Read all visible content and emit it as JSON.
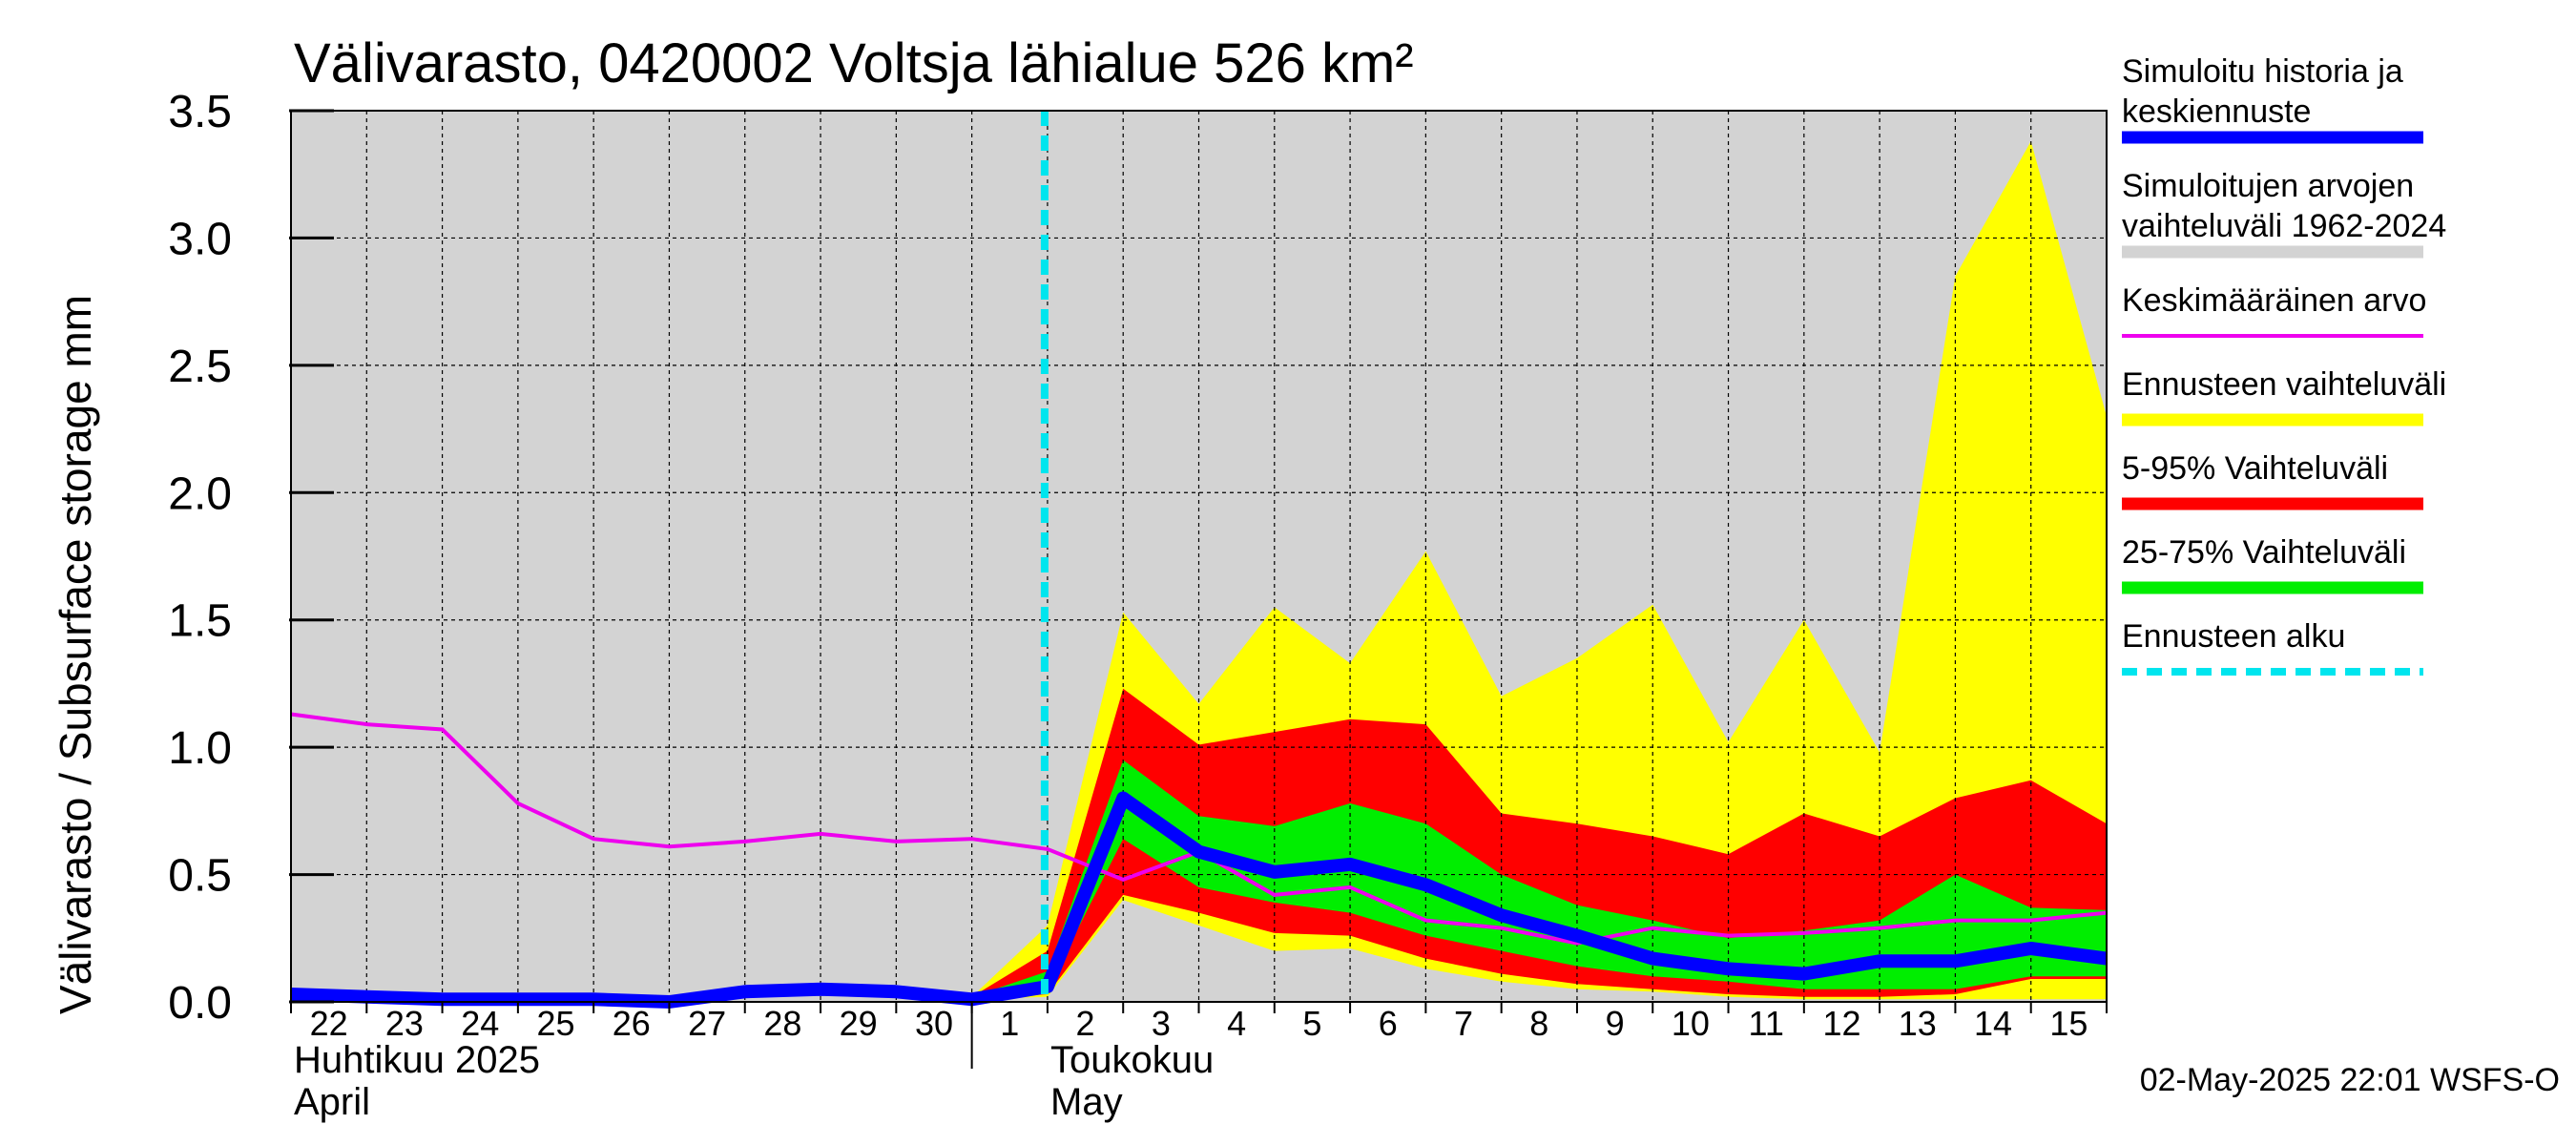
{
  "chart_data": {
    "type": "area",
    "title": "Välivarasto, 0420002 Voltsja lähialue 526 km²",
    "ylabel": "Välivarasto / Subsurface storage  mm",
    "ylim": [
      0,
      3.5
    ],
    "y_ticks": [
      "0.0",
      "0.5",
      "1.0",
      "1.5",
      "2.0",
      "2.5",
      "3.0",
      "3.5"
    ],
    "x_day_labels": [
      "22",
      "23",
      "24",
      "25",
      "26",
      "27",
      "28",
      "29",
      "30",
      "1",
      "2",
      "3",
      "4",
      "5",
      "6",
      "7",
      "8",
      "9",
      "10",
      "11",
      "12",
      "13",
      "14",
      "15"
    ],
    "x_start": "2025-04-22",
    "x_end": "2025-05-16",
    "month_labels": [
      {
        "line1": "Huhtikuu  2025",
        "line2": "April"
      },
      {
        "line1": "Toukokuu",
        "line2": "May"
      }
    ],
    "forecast_start": "2025-05-02",
    "grid": true,
    "legend_position": "right",
    "colors": {
      "history_range": "#d3d3d3",
      "forecast_range": "#ffff00",
      "p5_95": "#ff0000",
      "p25_75": "#00ee00",
      "median": "#0000ff",
      "mean": "#ee00ee",
      "forecast_start": "#00e5ee"
    },
    "legend": [
      {
        "label_1": "Simuloitu historia ja",
        "label_2": "keskiennuste",
        "color": "#0000ff",
        "style": "line-thick"
      },
      {
        "label_1": "Simuloitujen arvojen",
        "label_2": "vaihteluväli 1962-2024",
        "color": "#d3d3d3",
        "style": "line-thick"
      },
      {
        "label_1": "Keskimääräinen arvo",
        "color": "#ee00ee",
        "style": "line-thin"
      },
      {
        "label_1": "Ennusteen vaihteluväli",
        "color": "#ffff00",
        "style": "line-thick"
      },
      {
        "label_1": "5-95% Vaihteluväli",
        "color": "#ff0000",
        "style": "line-thick"
      },
      {
        "label_1": "25-75% Vaihteluväli",
        "color": "#00ee00",
        "style": "line-thick"
      },
      {
        "label_1": "Ennusteen alku",
        "color": "#00e5ee",
        "style": "dashed"
      }
    ],
    "series": [
      {
        "name": "Simuloitu historia ja keskiennuste",
        "x": [
          "2025-04-22",
          "2025-04-23",
          "2025-04-24",
          "2025-04-25",
          "2025-04-26",
          "2025-04-27",
          "2025-04-28",
          "2025-04-29",
          "2025-04-30",
          "2025-05-01",
          "2025-05-02",
          "2025-05-03",
          "2025-05-04",
          "2025-05-05",
          "2025-05-06",
          "2025-05-07",
          "2025-05-08",
          "2025-05-09",
          "2025-05-10",
          "2025-05-11",
          "2025-05-12",
          "2025-05-13",
          "2025-05-14",
          "2025-05-15",
          "2025-05-16"
        ],
        "y": [
          0.03,
          0.02,
          0.01,
          0.01,
          0.01,
          0.0,
          0.04,
          0.05,
          0.04,
          0.01,
          0.06,
          0.8,
          0.59,
          0.51,
          0.54,
          0.46,
          0.34,
          0.26,
          0.17,
          0.13,
          0.11,
          0.16,
          0.16,
          0.21,
          0.17
        ]
      },
      {
        "name": "Keskimääräinen arvo",
        "x": [
          "2025-04-22",
          "2025-04-23",
          "2025-04-24",
          "2025-04-25",
          "2025-04-26",
          "2025-04-27",
          "2025-04-28",
          "2025-04-29",
          "2025-04-30",
          "2025-05-01",
          "2025-05-02",
          "2025-05-03",
          "2025-05-04",
          "2025-05-05",
          "2025-05-06",
          "2025-05-07",
          "2025-05-08",
          "2025-05-09",
          "2025-05-10",
          "2025-05-11",
          "2025-05-12",
          "2025-05-13",
          "2025-05-14",
          "2025-05-15",
          "2025-05-16"
        ],
        "y": [
          1.13,
          1.09,
          1.07,
          0.78,
          0.64,
          0.61,
          0.63,
          0.66,
          0.63,
          0.64,
          0.6,
          0.48,
          0.59,
          0.42,
          0.45,
          0.32,
          0.29,
          0.23,
          0.29,
          0.26,
          0.27,
          0.29,
          0.32,
          0.32,
          0.35
        ]
      }
    ],
    "bands": [
      {
        "name": "Ennusteen vaihteluväli",
        "x": [
          "2025-05-01",
          "2025-05-02",
          "2025-05-03",
          "2025-05-04",
          "2025-05-05",
          "2025-05-06",
          "2025-05-07",
          "2025-05-08",
          "2025-05-09",
          "2025-05-10",
          "2025-05-11",
          "2025-05-12",
          "2025-05-13",
          "2025-05-14",
          "2025-05-15",
          "2025-05-16"
        ],
        "low": [
          0.01,
          0.02,
          0.4,
          0.3,
          0.2,
          0.21,
          0.13,
          0.08,
          0.05,
          0.04,
          0.02,
          0.01,
          0.01,
          0.01,
          0.01,
          0.01
        ],
        "high": [
          0.02,
          0.3,
          1.53,
          1.17,
          1.55,
          1.33,
          1.77,
          1.2,
          1.35,
          1.56,
          1.02,
          1.5,
          0.98,
          2.85,
          3.38,
          2.3
        ]
      },
      {
        "name": "5-95% Vaihteluväli",
        "x": [
          "2025-05-01",
          "2025-05-02",
          "2025-05-03",
          "2025-05-04",
          "2025-05-05",
          "2025-05-06",
          "2025-05-07",
          "2025-05-08",
          "2025-05-09",
          "2025-05-10",
          "2025-05-11",
          "2025-05-12",
          "2025-05-13",
          "2025-05-14",
          "2025-05-15",
          "2025-05-16"
        ],
        "low": [
          0.01,
          0.03,
          0.42,
          0.35,
          0.27,
          0.26,
          0.17,
          0.11,
          0.07,
          0.05,
          0.03,
          0.02,
          0.02,
          0.03,
          0.09,
          0.09
        ],
        "high": [
          0.02,
          0.2,
          1.23,
          1.01,
          1.06,
          1.11,
          1.09,
          0.74,
          0.7,
          0.65,
          0.58,
          0.74,
          0.65,
          0.8,
          0.87,
          0.7
        ]
      },
      {
        "name": "25-75% Vaihteluväli",
        "x": [
          "2025-05-01",
          "2025-05-02",
          "2025-05-03",
          "2025-05-04",
          "2025-05-05",
          "2025-05-06",
          "2025-05-07",
          "2025-05-08",
          "2025-05-09",
          "2025-05-10",
          "2025-05-11",
          "2025-05-12",
          "2025-05-13",
          "2025-05-14",
          "2025-05-15",
          "2025-05-16"
        ],
        "low": [
          0.01,
          0.05,
          0.64,
          0.45,
          0.39,
          0.35,
          0.26,
          0.2,
          0.14,
          0.1,
          0.08,
          0.05,
          0.05,
          0.05,
          0.1,
          0.1
        ],
        "high": [
          0.02,
          0.12,
          0.95,
          0.73,
          0.69,
          0.78,
          0.7,
          0.5,
          0.38,
          0.32,
          0.25,
          0.28,
          0.32,
          0.5,
          0.37,
          0.36
        ]
      }
    ]
  },
  "timestamp": "02-May-2025 22:01 WSFS-O"
}
